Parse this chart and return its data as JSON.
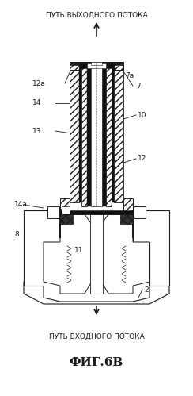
{
  "title": "ФИГ.6В",
  "top_label": "ПУТЬ ВЫХОДНОГО ПОТОКА",
  "bottom_label": "ПУТЬ ВХОДНОГО ПОТОКА",
  "bg_color": "#ffffff",
  "fg_color": "#1a1a1a"
}
